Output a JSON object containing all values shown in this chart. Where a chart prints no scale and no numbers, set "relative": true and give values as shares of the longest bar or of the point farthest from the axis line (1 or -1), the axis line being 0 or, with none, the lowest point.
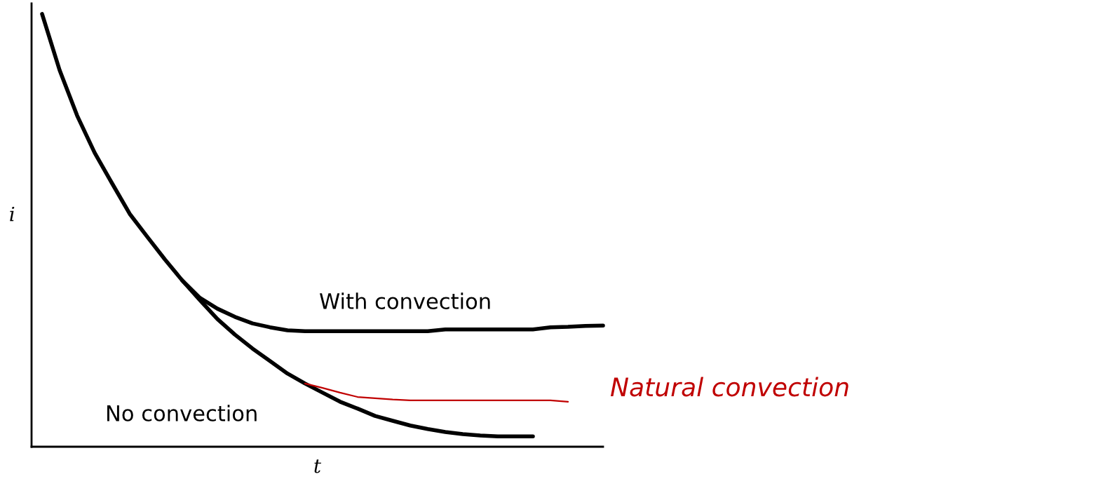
{
  "chart_data": {
    "type": "line",
    "relative": true,
    "xlabel": "t",
    "ylabel": "i",
    "grid": false,
    "legend": false,
    "marker": "none",
    "line_style": "solid",
    "categories": [
      null,
      null,
      null,
      null,
      null,
      null,
      null,
      null,
      null,
      null,
      null,
      null,
      null,
      null,
      null,
      null,
      null,
      null,
      null,
      null,
      null,
      null,
      null,
      null,
      null,
      null,
      null,
      null,
      null,
      null,
      null,
      null,
      null
    ],
    "series": [
      {
        "name": "No convection",
        "color": "#000000",
        "values": [
          1.0,
          0.87,
          0.765,
          0.679,
          0.608,
          0.538,
          0.485,
          0.433,
          0.384,
          0.339,
          0.295,
          0.259,
          0.227,
          0.198,
          0.169,
          0.146,
          0.125,
          0.104,
          0.088,
          0.071,
          0.06,
          0.049,
          0.041,
          0.034,
          0.029,
          0.026,
          0.024,
          0.024,
          0.024,
          null,
          null,
          null,
          null
        ]
      },
      {
        "name": "With convection",
        "color": "#000000",
        "values": [
          null,
          null,
          null,
          null,
          null,
          null,
          null,
          null,
          0.384,
          0.344,
          0.319,
          0.3,
          0.285,
          0.276,
          0.269,
          0.267,
          0.267,
          0.267,
          0.267,
          0.267,
          0.267,
          0.267,
          0.267,
          0.271,
          0.271,
          0.271,
          0.271,
          0.271,
          0.271,
          0.276,
          0.277,
          0.279,
          0.28
        ]
      },
      {
        "name": "Natural convection",
        "color": "#c00000",
        "values": [
          null,
          null,
          null,
          null,
          null,
          null,
          null,
          null,
          null,
          null,
          null,
          null,
          null,
          null,
          null,
          0.146,
          0.136,
          0.125,
          0.115,
          0.112,
          0.109,
          0.107,
          0.107,
          0.107,
          0.107,
          0.107,
          0.107,
          0.107,
          0.107,
          0.107,
          0.104,
          null,
          null
        ]
      }
    ]
  }
}
